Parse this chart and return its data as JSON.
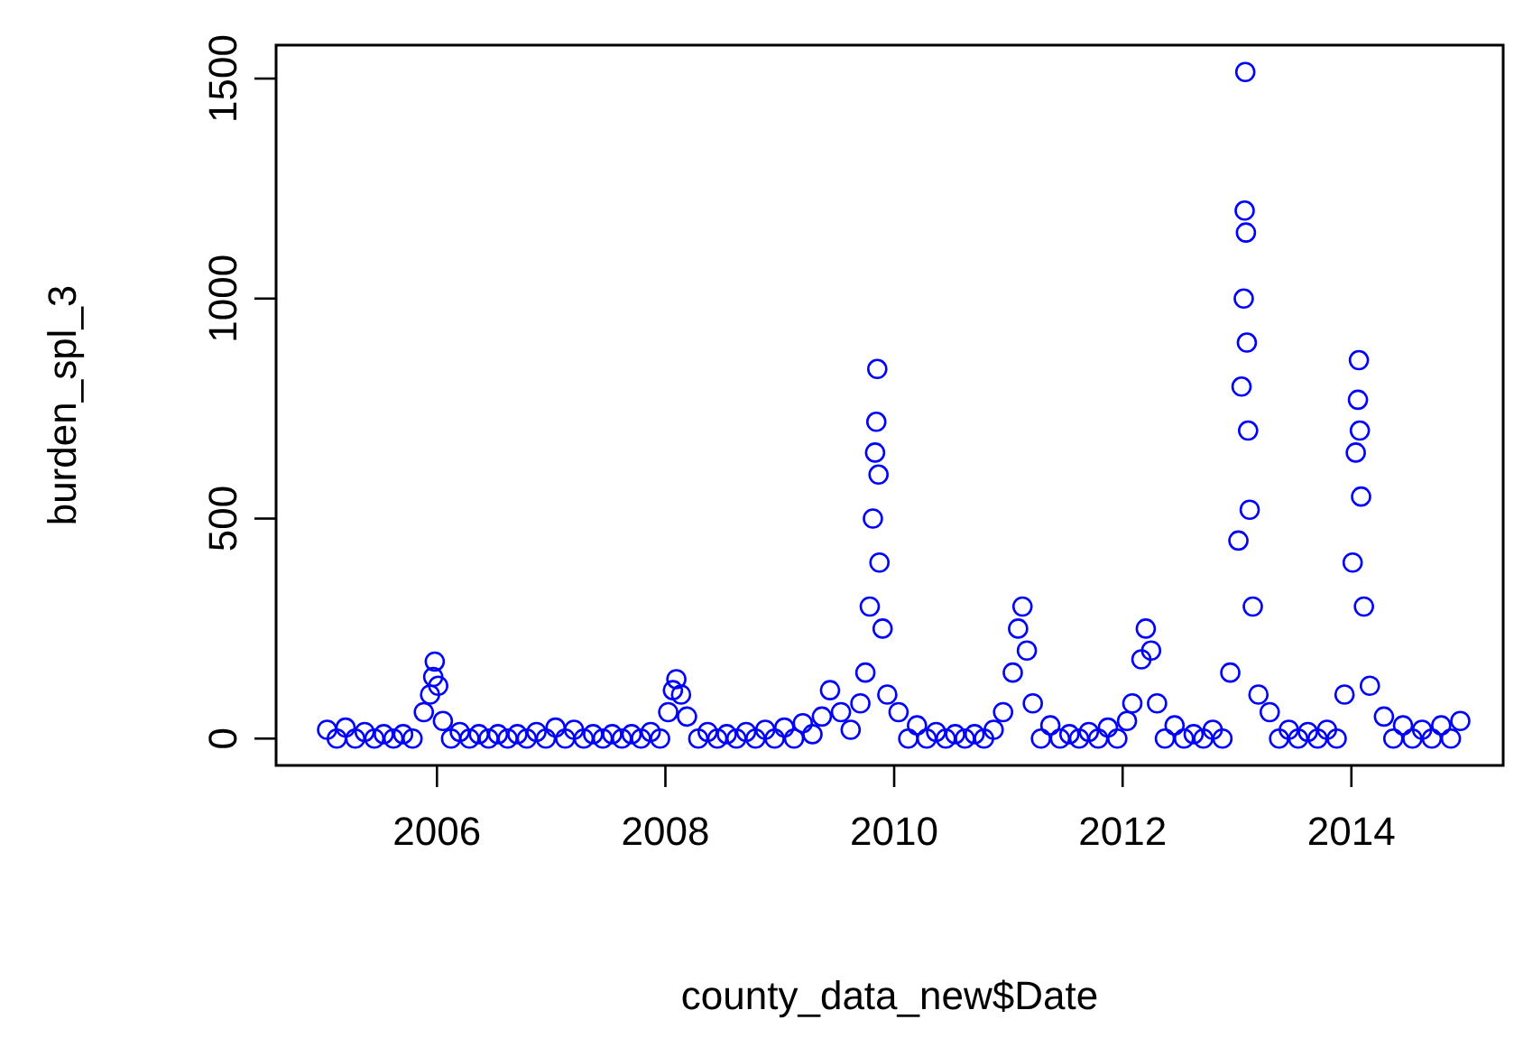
{
  "chart_data": {
    "type": "scatter",
    "xlabel": "county_data_new$Date",
    "ylabel": "burden_spl_3",
    "color": "#0000ff",
    "marker": "circle",
    "grid": false,
    "xlim": [
      "2004-08-05",
      "2015-05-01"
    ],
    "xticks": [
      "2006",
      "2008",
      "2010",
      "2012",
      "2014"
    ],
    "ylim": [
      -61,
      1576
    ],
    "yticks": [
      0,
      500,
      1000,
      1500
    ],
    "x": [
      "2005-01-15",
      "2005-02-15",
      "2005-03-15",
      "2005-04-15",
      "2005-05-15",
      "2005-06-15",
      "2005-07-15",
      "2005-08-15",
      "2005-09-15",
      "2005-10-15",
      "2005-11-20",
      "2005-12-10",
      "2005-12-20",
      "2005-12-25",
      "2006-01-05",
      "2006-01-20",
      "2006-02-15",
      "2006-03-15",
      "2006-04-15",
      "2006-05-15",
      "2006-06-15",
      "2006-07-15",
      "2006-08-15",
      "2006-09-15",
      "2006-10-15",
      "2006-11-15",
      "2006-12-15",
      "2007-01-15",
      "2007-02-15",
      "2007-03-15",
      "2007-04-15",
      "2007-05-15",
      "2007-06-15",
      "2007-07-15",
      "2007-08-15",
      "2007-09-15",
      "2007-10-15",
      "2007-11-15",
      "2007-12-15",
      "2008-01-10",
      "2008-01-25",
      "2008-02-05",
      "2008-02-20",
      "2008-03-10",
      "2008-04-15",
      "2008-05-15",
      "2008-06-15",
      "2008-07-15",
      "2008-08-15",
      "2008-09-15",
      "2008-10-15",
      "2008-11-15",
      "2008-12-15",
      "2009-01-15",
      "2009-02-15",
      "2009-03-15",
      "2009-04-15",
      "2009-05-15",
      "2009-06-10",
      "2009-07-15",
      "2009-08-15",
      "2009-09-15",
      "2009-10-01",
      "2009-10-15",
      "2009-10-25",
      "2009-11-01",
      "2009-11-05",
      "2009-11-08",
      "2009-11-12",
      "2009-11-15",
      "2009-11-25",
      "2009-12-10",
      "2010-01-15",
      "2010-02-15",
      "2010-03-15",
      "2010-04-15",
      "2010-05-15",
      "2010-06-15",
      "2010-07-15",
      "2010-08-15",
      "2010-09-15",
      "2010-10-15",
      "2010-11-15",
      "2010-12-15",
      "2011-01-15",
      "2011-02-01",
      "2011-02-15",
      "2011-03-01",
      "2011-03-20",
      "2011-04-15",
      "2011-05-15",
      "2011-06-15",
      "2011-07-15",
      "2011-08-15",
      "2011-09-15",
      "2011-10-15",
      "2011-11-15",
      "2011-12-15",
      "2012-01-15",
      "2012-02-01",
      "2012-03-01",
      "2012-03-15",
      "2012-04-01",
      "2012-04-20",
      "2012-05-15",
      "2012-06-15",
      "2012-07-15",
      "2012-08-15",
      "2012-09-15",
      "2012-10-15",
      "2012-11-15",
      "2012-12-10",
      "2013-01-05",
      "2013-01-15",
      "2013-01-22",
      "2013-01-25",
      "2013-01-27",
      "2013-01-29",
      "2013-02-01",
      "2013-02-05",
      "2013-02-10",
      "2013-02-20",
      "2013-03-10",
      "2013-04-15",
      "2013-05-15",
      "2013-06-15",
      "2013-07-15",
      "2013-08-15",
      "2013-09-15",
      "2013-10-15",
      "2013-11-15",
      "2013-12-10",
      "2014-01-05",
      "2014-01-15",
      "2014-01-22",
      "2014-01-25",
      "2014-01-28",
      "2014-02-01",
      "2014-02-10",
      "2014-03-01",
      "2014-04-15",
      "2014-05-15",
      "2014-06-15",
      "2014-07-15",
      "2014-08-15",
      "2014-09-15",
      "2014-10-15",
      "2014-11-15",
      "2014-12-15"
    ],
    "values": [
      20,
      0,
      25,
      0,
      15,
      0,
      10,
      0,
      10,
      0,
      60,
      100,
      140,
      175,
      120,
      40,
      0,
      15,
      0,
      10,
      0,
      10,
      0,
      10,
      0,
      15,
      0,
      25,
      0,
      20,
      0,
      10,
      0,
      10,
      0,
      10,
      0,
      15,
      0,
      60,
      110,
      135,
      100,
      50,
      0,
      15,
      0,
      10,
      0,
      15,
      0,
      20,
      0,
      25,
      0,
      35,
      10,
      50,
      110,
      60,
      20,
      80,
      150,
      300,
      500,
      650,
      720,
      840,
      600,
      400,
      250,
      100,
      60,
      0,
      30,
      0,
      15,
      0,
      10,
      0,
      10,
      0,
      20,
      60,
      150,
      250,
      300,
      200,
      80,
      0,
      30,
      0,
      10,
      0,
      15,
      0,
      25,
      0,
      40,
      80,
      180,
      250,
      200,
      80,
      0,
      30,
      0,
      10,
      0,
      20,
      0,
      150,
      450,
      800,
      1000,
      1200,
      1515,
      1150,
      900,
      700,
      520,
      300,
      100,
      60,
      0,
      20,
      0,
      15,
      0,
      20,
      0,
      100,
      400,
      650,
      770,
      860,
      700,
      550,
      300,
      120,
      50,
      0,
      30,
      0,
      20,
      0,
      30,
      0,
      40
    ]
  }
}
